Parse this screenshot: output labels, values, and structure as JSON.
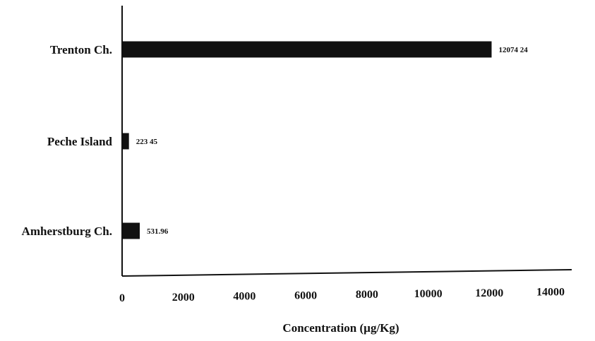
{
  "chart_data": {
    "type": "bar",
    "orientation": "horizontal",
    "categories": [
      "Trenton Ch.",
      "Peche Island",
      "Amherstburg Ch."
    ],
    "values": [
      12074.24,
      223.45,
      531.96
    ],
    "data_labels": [
      "12074 24",
      "223 45",
      "531.96"
    ],
    "title": "",
    "xlabel": "Concentration (µg/Kg)",
    "ylabel": "",
    "xlim": [
      0,
      14000
    ],
    "xticks": [
      0,
      2000,
      4000,
      6000,
      8000,
      10000,
      12000,
      14000
    ],
    "xtick_labels": [
      "0",
      "2000",
      "4000",
      "6000",
      "8000",
      "10000",
      "12000",
      "14000"
    ],
    "grid": false,
    "legend": "none",
    "bar_color": "#111111"
  }
}
